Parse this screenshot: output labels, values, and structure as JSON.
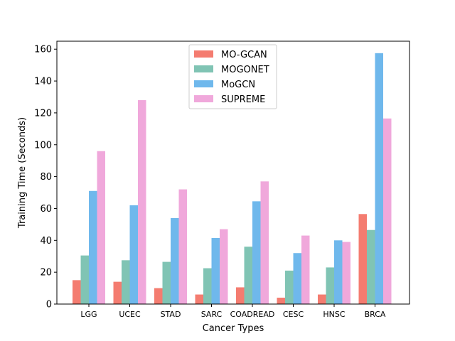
{
  "chart_data": {
    "type": "bar",
    "title": "",
    "xlabel": "Cancer Types",
    "ylabel": "Training Time (Seconds)",
    "ylim": [
      0,
      165
    ],
    "yticks": [
      0,
      20,
      40,
      60,
      80,
      100,
      120,
      140,
      160
    ],
    "categories": [
      "LGG",
      "UCEC",
      "STAD",
      "SARC",
      "COADREAD",
      "CESC",
      "HNSC",
      "BRCA"
    ],
    "legend_position": "top-center",
    "grid": false,
    "series": [
      {
        "name": "MO-GCAN",
        "color": "#f47c70",
        "values": [
          15,
          14,
          10,
          6,
          10.5,
          4,
          6,
          56.5
        ]
      },
      {
        "name": "MOGONET",
        "color": "#80c4b4",
        "values": [
          30.5,
          27.5,
          26.5,
          22.5,
          36,
          21,
          23,
          46.5
        ]
      },
      {
        "name": "MoGCN",
        "color": "#6fb8ec",
        "values": [
          71,
          62,
          54,
          41.5,
          64.5,
          32,
          40,
          157.5
        ]
      },
      {
        "name": "SUPREME",
        "color": "#f0a8db",
        "values": [
          96,
          128,
          72,
          47,
          77,
          43,
          39,
          116.5
        ]
      }
    ]
  }
}
